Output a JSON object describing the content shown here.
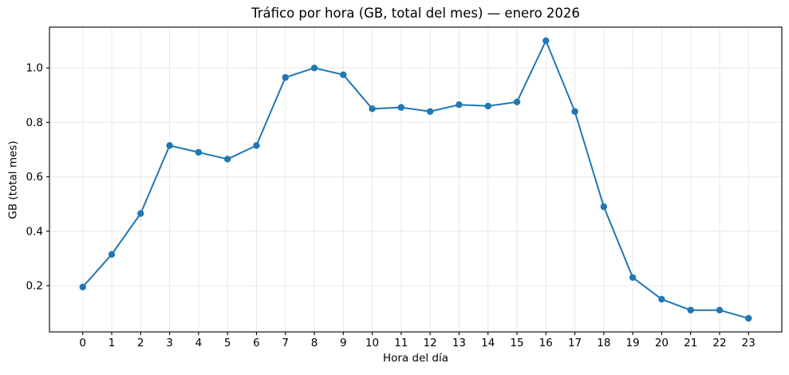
{
  "page": {
    "background": "#ffffff"
  },
  "chart_data": {
    "type": "line",
    "title": "Tráfico por hora (GB, total del mes) — enero 2026",
    "xlabel": "Hora del día",
    "ylabel": "GB (total mes)",
    "x": [
      0,
      1,
      2,
      3,
      4,
      5,
      6,
      7,
      8,
      9,
      10,
      11,
      12,
      13,
      14,
      15,
      16,
      17,
      18,
      19,
      20,
      21,
      22,
      23
    ],
    "values": [
      0.195,
      0.315,
      0.465,
      0.715,
      0.69,
      0.665,
      0.715,
      0.965,
      1.0,
      0.975,
      0.85,
      0.855,
      0.84,
      0.865,
      0.86,
      0.875,
      1.1,
      0.84,
      0.49,
      0.23,
      0.15,
      0.11,
      0.11,
      0.08
    ],
    "xtick_labels": [
      "0",
      "1",
      "2",
      "3",
      "4",
      "5",
      "6",
      "7",
      "8",
      "9",
      "10",
      "11",
      "12",
      "13",
      "14",
      "15",
      "16",
      "17",
      "18",
      "19",
      "20",
      "21",
      "22",
      "23"
    ],
    "yticks": [
      0.2,
      0.4,
      0.6,
      0.8,
      1.0
    ],
    "ytick_labels": [
      "0.2",
      "0.4",
      "0.6",
      "0.8",
      "1.0"
    ],
    "xlim": [
      -1.15,
      24.15
    ],
    "ylim": [
      0.03,
      1.15
    ],
    "grid": true,
    "legend": "none",
    "line_color": "#1f77b4",
    "marker": "o",
    "grid_color": "#e7e7e7",
    "axis_color": "#000000",
    "tick_label_color": "#000000"
  }
}
